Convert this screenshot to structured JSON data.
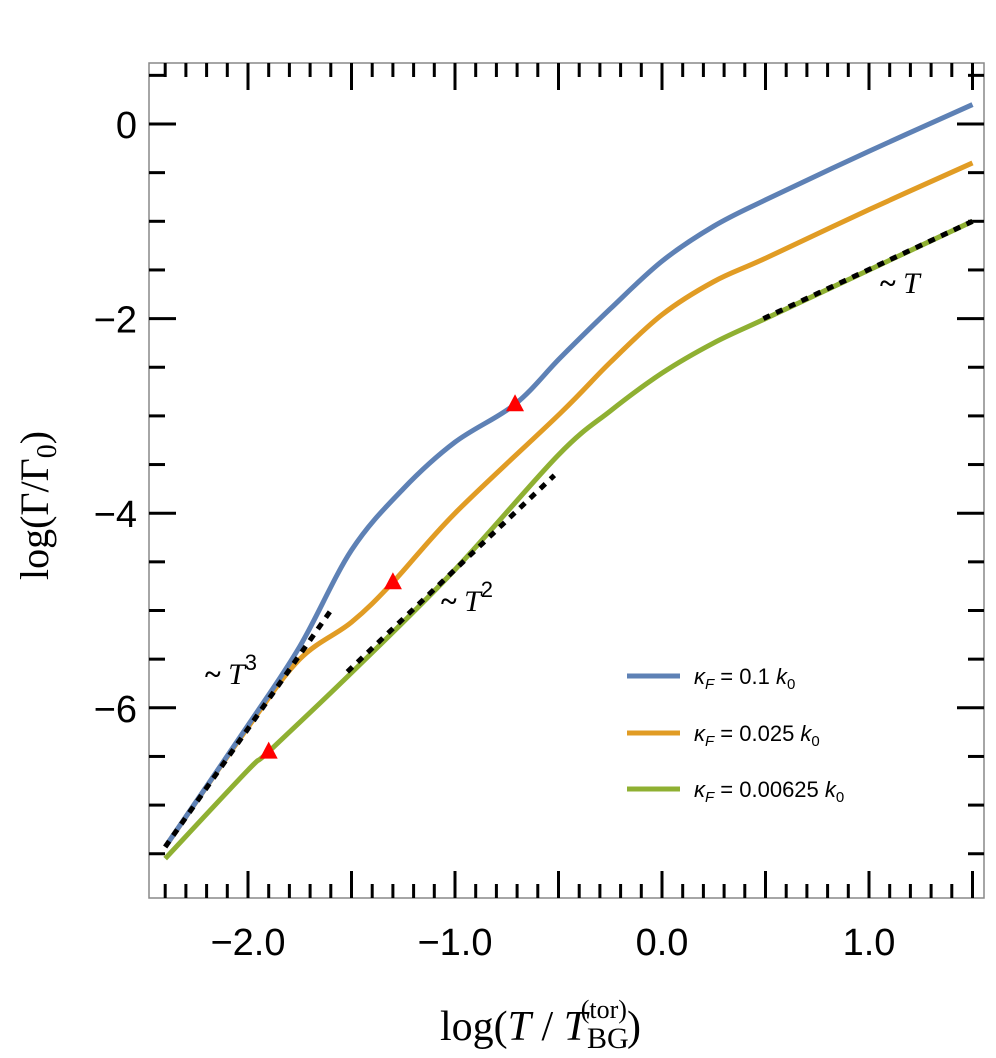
{
  "chart_data": {
    "type": "line",
    "title": "",
    "xlabel": "log(T / T_BG^(tor))",
    "ylabel": "log(Γ/Γ0)",
    "xlim": [
      -2.48,
      1.56
    ],
    "ylim": [
      -7.95,
      0.63
    ],
    "grid": false,
    "legend_position": "lower right (inside)",
    "x_ticks": [
      -2.0,
      -1.0,
      0.0,
      1.0
    ],
    "x_tick_labels": [
      "−2.0",
      "−1.0",
      "0.0",
      "1.0"
    ],
    "y_ticks": [
      0,
      -2,
      -4,
      -6
    ],
    "y_tick_labels": [
      "0",
      "−2",
      "−4",
      "−6"
    ],
    "series": [
      {
        "name": "κF = 0.1 k0",
        "color": "#5E81B5",
        "x": [
          -2.4,
          -2.0,
          -1.75,
          -1.5,
          -1.25,
          -1.0,
          -0.71,
          -0.49,
          -0.25,
          0.0,
          0.25,
          0.5,
          1.0,
          1.5
        ],
        "y": [
          -7.43,
          -6.18,
          -5.37,
          -4.38,
          -3.75,
          -3.27,
          -2.88,
          -2.4,
          -1.9,
          -1.41,
          -1.05,
          -0.78,
          -0.28,
          0.2
        ]
      },
      {
        "name": "κF = 0.025 k0",
        "color": "#E19C24",
        "x": [
          -2.4,
          -2.0,
          -1.75,
          -1.5,
          -1.3,
          -1.0,
          -0.49,
          -0.25,
          0.0,
          0.25,
          0.5,
          1.0,
          1.5
        ],
        "y": [
          -7.43,
          -6.2,
          -5.5,
          -5.12,
          -4.71,
          -4.0,
          -2.97,
          -2.45,
          -1.96,
          -1.62,
          -1.38,
          -0.88,
          -0.4
        ]
      },
      {
        "name": "κF = 0.00625 k0",
        "color": "#8FB032",
        "x": [
          -2.4,
          -2.0,
          -1.9,
          -1.5,
          -1.0,
          -0.5,
          -0.25,
          0.0,
          0.25,
          0.5,
          1.0,
          1.5
        ],
        "y": [
          -7.55,
          -6.64,
          -6.45,
          -5.64,
          -4.58,
          -3.4,
          -2.95,
          -2.56,
          -2.25,
          -2.0,
          -1.5,
          -1.0
        ]
      }
    ],
    "markers": {
      "shape": "triangle",
      "color": "#FF0000",
      "points": [
        {
          "series": "κF = 0.1 k0",
          "x": -0.71,
          "y": -2.88
        },
        {
          "series": "κF = 0.025 k0",
          "x": -1.3,
          "y": -4.71
        },
        {
          "series": "κF = 0.00625 k0",
          "x": -1.9,
          "y": -6.45
        }
      ]
    },
    "fits": [
      {
        "label": "~ T^3",
        "x": [
          -2.4,
          -1.6
        ],
        "y": [
          -7.43,
          -5.0
        ],
        "label_pos": [
          -2.15,
          -5.75
        ]
      },
      {
        "label": "~ T^2",
        "x": [
          -1.52,
          -0.52
        ],
        "y": [
          -5.63,
          -3.61
        ],
        "label_pos": [
          -1.05,
          -4.95
        ]
      },
      {
        "label": "~ T",
        "x": [
          0.49,
          1.5
        ],
        "y": [
          -2.0,
          -1.0
        ],
        "label_pos": [
          1.15,
          -1.73
        ]
      }
    ]
  },
  "legend": {
    "items": [
      {
        "kappa": "κ",
        "sub": "F",
        "eq": " = 0.1 ",
        "k": "k",
        "ksub": "0",
        "color": "#5E81B5"
      },
      {
        "kappa": "κ",
        "sub": "F",
        "eq": " = 0.025 ",
        "k": "k",
        "ksub": "0",
        "color": "#E19C24"
      },
      {
        "kappa": "κ",
        "sub": "F",
        "eq": " = 0.00625 ",
        "k": "k",
        "ksub": "0",
        "color": "#8FB032"
      }
    ]
  },
  "axes": {
    "x_title": {
      "pre": "log(",
      "T": "T",
      "slash": " / ",
      "T2": "T",
      "sub": "BG",
      "sup": "(tor)",
      "post": ")"
    },
    "y_title": {
      "pre": "log(Γ/Γ",
      "sub": "0",
      "post": ")"
    }
  },
  "annotations": [
    {
      "tilde": "~ ",
      "T": "T",
      "sup": "3"
    },
    {
      "tilde": "~ ",
      "T": "T",
      "sup": "2"
    },
    {
      "tilde": "~ ",
      "T": "T",
      "sup": ""
    }
  ]
}
